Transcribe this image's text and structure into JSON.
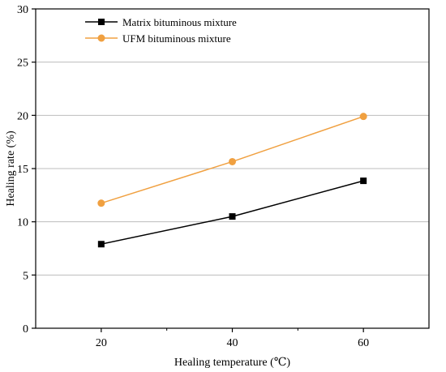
{
  "chart_data": {
    "type": "line",
    "xlabel": "Healing temperature (℃)",
    "ylabel": "Healing rate (%)",
    "x": [
      20,
      40,
      60
    ],
    "xticks": [
      20,
      40,
      60
    ],
    "minor_xticks": [
      30,
      50
    ],
    "xlim": [
      10,
      70
    ],
    "ylim": [
      0,
      30
    ],
    "yticks": [
      0,
      5,
      10,
      15,
      20,
      25,
      30
    ],
    "grid": "horizontal",
    "legend_position": "top-left",
    "series": [
      {
        "name": "Matrix bituminous mixture",
        "values": [
          7.9,
          10.5,
          13.85
        ],
        "color": "#000000",
        "marker": "square"
      },
      {
        "name": "UFM bituminous mixture",
        "values": [
          11.75,
          15.65,
          19.9
        ],
        "color": "#f0a040",
        "marker": "circle"
      }
    ]
  }
}
